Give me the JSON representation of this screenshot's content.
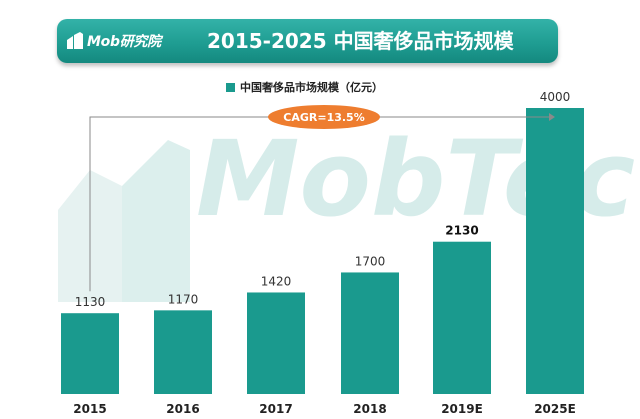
{
  "header": {
    "brand": "Mob研究院",
    "title": "2015-2025 中国奢侈品市场规模"
  },
  "watermark": "MobTec",
  "colors": {
    "bar": "#1a9a8e",
    "banner": "#1f9d92",
    "cagr_badge": "#ee7d2f"
  },
  "chart_data": {
    "type": "bar",
    "title": "2015-2025 中国奢侈品市场规模",
    "categories": [
      "2015",
      "2016",
      "2017",
      "2018",
      "2019E",
      "2025E"
    ],
    "series": [
      {
        "name": "中国奢侈品市场规模（亿元）",
        "values": [
          1130,
          1170,
          1420,
          1700,
          2130,
          4000
        ]
      }
    ],
    "value_labels": [
      "1130",
      "1170",
      "1420",
      "1700",
      "2130",
      "4000"
    ],
    "bold_value_labels": [
      "2130"
    ],
    "ylim": [
      0,
      4000
    ],
    "xlabel": "",
    "ylabel": "",
    "grid": false,
    "legend_position": "top-center",
    "annotation": {
      "text": "CAGR=13.5%",
      "from": "2015",
      "to": "2025E"
    }
  }
}
